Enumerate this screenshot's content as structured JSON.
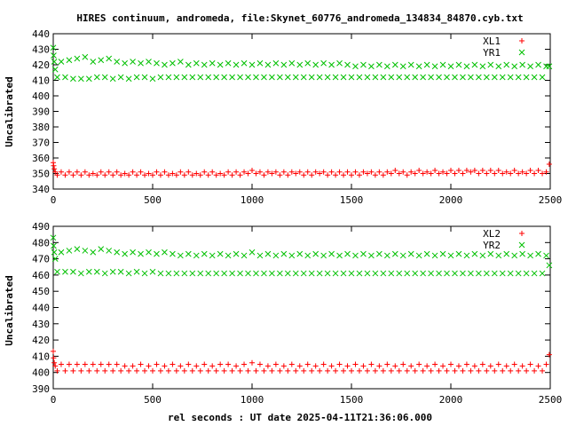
{
  "figure": {
    "title": "HIRES continuum, andromeda, file:Skynet_60776_andromeda_134834_84870.cyb.txt",
    "xlabel": "rel seconds : UT date 2025-04-11T21:36:06.000"
  },
  "chart_data": [
    {
      "type": "scatter",
      "ylabel": "Uncalibrated",
      "xlim": [
        0,
        2500
      ],
      "ylim": [
        340,
        440
      ],
      "xticks": [
        0,
        500,
        1000,
        1500,
        2000,
        2500
      ],
      "yticks": [
        340,
        350,
        360,
        370,
        380,
        390,
        400,
        410,
        420,
        430,
        440
      ],
      "grid": false,
      "legend_position": "top-right",
      "series": [
        {
          "name": "XL1",
          "marker": "plus",
          "color": "#ff0000",
          "x": [
            0,
            2,
            5,
            10,
            20,
            40,
            60,
            80,
            100,
            120,
            140,
            160,
            180,
            200,
            220,
            240,
            260,
            280,
            300,
            320,
            340,
            360,
            380,
            400,
            420,
            440,
            460,
            480,
            500,
            520,
            540,
            560,
            580,
            600,
            620,
            640,
            660,
            680,
            700,
            720,
            740,
            760,
            780,
            800,
            820,
            840,
            860,
            880,
            900,
            920,
            940,
            960,
            980,
            1000,
            1020,
            1040,
            1060,
            1080,
            1100,
            1120,
            1140,
            1160,
            1180,
            1200,
            1220,
            1240,
            1260,
            1280,
            1300,
            1320,
            1340,
            1360,
            1380,
            1400,
            1420,
            1440,
            1460,
            1480,
            1500,
            1520,
            1540,
            1560,
            1580,
            1600,
            1620,
            1640,
            1660,
            1680,
            1700,
            1720,
            1740,
            1760,
            1780,
            1800,
            1820,
            1840,
            1860,
            1880,
            1900,
            1920,
            1940,
            1960,
            1980,
            2000,
            2020,
            2040,
            2060,
            2080,
            2100,
            2120,
            2140,
            2160,
            2180,
            2200,
            2220,
            2240,
            2260,
            2280,
            2300,
            2320,
            2340,
            2360,
            2380,
            2400,
            2420,
            2440,
            2460,
            2480,
            2495
          ],
          "y": [
            357,
            355,
            353,
            351,
            349,
            351,
            349,
            351,
            349,
            351,
            349,
            351,
            349,
            350,
            349,
            351,
            349,
            351,
            349,
            351,
            349,
            350,
            349,
            351,
            349,
            351,
            349,
            350,
            349,
            351,
            349,
            351,
            349,
            350,
            349,
            351,
            349,
            351,
            349,
            350,
            349,
            351,
            349,
            351,
            349,
            350,
            349,
            351,
            349,
            351,
            349,
            351,
            350,
            352,
            350,
            351,
            349,
            351,
            350,
            351,
            349,
            351,
            349,
            351,
            350,
            351,
            349,
            351,
            349,
            351,
            350,
            351,
            349,
            351,
            349,
            351,
            349,
            351,
            349,
            351,
            349,
            351,
            350,
            351,
            349,
            351,
            349,
            351,
            350,
            352,
            350,
            351,
            349,
            351,
            350,
            352,
            350,
            351,
            350,
            352,
            350,
            351,
            350,
            352,
            350,
            352,
            350,
            352,
            351,
            352,
            350,
            352,
            350,
            352,
            350,
            352,
            350,
            351,
            350,
            352,
            350,
            351,
            350,
            352,
            350,
            352,
            350,
            351,
            356
          ]
        },
        {
          "name": "YR1",
          "marker": "cross",
          "color": "#00c000",
          "x": [
            0,
            2,
            5,
            10,
            20,
            40,
            60,
            80,
            100,
            120,
            140,
            160,
            180,
            200,
            220,
            240,
            260,
            280,
            300,
            320,
            340,
            360,
            380,
            400,
            420,
            440,
            460,
            480,
            500,
            520,
            540,
            560,
            580,
            600,
            620,
            640,
            660,
            680,
            700,
            720,
            740,
            760,
            780,
            800,
            820,
            840,
            860,
            880,
            900,
            920,
            940,
            960,
            980,
            1000,
            1020,
            1040,
            1060,
            1080,
            1100,
            1120,
            1140,
            1160,
            1180,
            1200,
            1220,
            1240,
            1260,
            1280,
            1300,
            1320,
            1340,
            1360,
            1380,
            1400,
            1420,
            1440,
            1460,
            1480,
            1500,
            1520,
            1540,
            1560,
            1580,
            1600,
            1620,
            1640,
            1660,
            1680,
            1700,
            1720,
            1740,
            1760,
            1780,
            1800,
            1820,
            1840,
            1860,
            1880,
            1900,
            1920,
            1940,
            1960,
            1980,
            2000,
            2020,
            2040,
            2060,
            2080,
            2100,
            2120,
            2140,
            2160,
            2180,
            2200,
            2220,
            2240,
            2260,
            2280,
            2300,
            2320,
            2340,
            2360,
            2380,
            2400,
            2420,
            2440,
            2460,
            2480,
            2495
          ],
          "y": [
            431,
            426,
            422,
            417,
            412,
            422,
            412,
            423,
            411,
            424,
            411,
            425,
            411,
            422,
            412,
            423,
            412,
            424,
            411,
            422,
            412,
            421,
            411,
            422,
            412,
            421,
            412,
            422,
            411,
            421,
            412,
            420,
            412,
            421,
            412,
            422,
            412,
            420,
            412,
            421,
            412,
            420,
            412,
            421,
            412,
            420,
            412,
            421,
            412,
            420,
            412,
            421,
            412,
            420,
            412,
            421,
            412,
            420,
            412,
            421,
            412,
            420,
            412,
            421,
            412,
            420,
            412,
            421,
            412,
            420,
            412,
            421,
            412,
            420,
            412,
            421,
            412,
            420,
            412,
            419,
            412,
            420,
            412,
            419,
            412,
            420,
            412,
            419,
            412,
            420,
            412,
            419,
            412,
            420,
            412,
            419,
            412,
            420,
            412,
            419,
            412,
            420,
            412,
            419,
            412,
            420,
            412,
            419,
            412,
            420,
            412,
            419,
            412,
            420,
            412,
            419,
            412,
            420,
            412,
            419,
            412,
            420,
            412,
            419,
            412,
            420,
            412,
            419,
            419
          ]
        }
      ]
    },
    {
      "type": "scatter",
      "ylabel": "Uncalibrated",
      "xlim": [
        0,
        2500
      ],
      "ylim": [
        390,
        490
      ],
      "xticks": [
        0,
        500,
        1000,
        1500,
        2000,
        2500
      ],
      "yticks": [
        390,
        400,
        410,
        420,
        430,
        440,
        450,
        460,
        470,
        480,
        490
      ],
      "grid": false,
      "legend_position": "top-right",
      "series": [
        {
          "name": "XL2",
          "marker": "plus",
          "color": "#ff0000",
          "x": [
            0,
            2,
            5,
            10,
            20,
            40,
            60,
            80,
            100,
            120,
            140,
            160,
            180,
            200,
            220,
            240,
            260,
            280,
            300,
            320,
            340,
            360,
            380,
            400,
            420,
            440,
            460,
            480,
            500,
            520,
            540,
            560,
            580,
            600,
            620,
            640,
            660,
            680,
            700,
            720,
            740,
            760,
            780,
            800,
            820,
            840,
            860,
            880,
            900,
            920,
            940,
            960,
            980,
            1000,
            1020,
            1040,
            1060,
            1080,
            1100,
            1120,
            1140,
            1160,
            1180,
            1200,
            1220,
            1240,
            1260,
            1280,
            1300,
            1320,
            1340,
            1360,
            1380,
            1400,
            1420,
            1440,
            1460,
            1480,
            1500,
            1520,
            1540,
            1560,
            1580,
            1600,
            1620,
            1640,
            1660,
            1680,
            1700,
            1720,
            1740,
            1760,
            1780,
            1800,
            1820,
            1840,
            1860,
            1880,
            1900,
            1920,
            1940,
            1960,
            1980,
            2000,
            2020,
            2040,
            2060,
            2080,
            2100,
            2120,
            2140,
            2160,
            2180,
            2200,
            2220,
            2240,
            2260,
            2280,
            2300,
            2320,
            2340,
            2360,
            2380,
            2400,
            2420,
            2440,
            2460,
            2480,
            2495
          ],
          "y": [
            413,
            409,
            406,
            404,
            401,
            405,
            401,
            405,
            401,
            405,
            401,
            405,
            401,
            405,
            401,
            405,
            401,
            405,
            401,
            405,
            401,
            404,
            401,
            404,
            401,
            405,
            401,
            404,
            401,
            405,
            401,
            404,
            401,
            405,
            401,
            404,
            401,
            405,
            401,
            404,
            401,
            405,
            401,
            404,
            401,
            405,
            401,
            405,
            401,
            404,
            401,
            405,
            401,
            406,
            401,
            405,
            401,
            404,
            401,
            405,
            401,
            404,
            401,
            405,
            401,
            404,
            401,
            405,
            401,
            404,
            401,
            405,
            401,
            404,
            401,
            405,
            401,
            404,
            401,
            405,
            401,
            404,
            401,
            405,
            401,
            404,
            401,
            405,
            401,
            404,
            401,
            405,
            401,
            404,
            401,
            405,
            401,
            404,
            401,
            405,
            401,
            404,
            401,
            405,
            401,
            404,
            401,
            405,
            401,
            404,
            401,
            405,
            401,
            404,
            401,
            405,
            401,
            404,
            401,
            405,
            401,
            404,
            401,
            405,
            401,
            404,
            401,
            405,
            411
          ]
        },
        {
          "name": "YR2",
          "marker": "cross",
          "color": "#00c000",
          "x": [
            0,
            2,
            5,
            10,
            20,
            40,
            60,
            80,
            100,
            120,
            140,
            160,
            180,
            200,
            220,
            240,
            260,
            280,
            300,
            320,
            340,
            360,
            380,
            400,
            420,
            440,
            460,
            480,
            500,
            520,
            540,
            560,
            580,
            600,
            620,
            640,
            660,
            680,
            700,
            720,
            740,
            760,
            780,
            800,
            820,
            840,
            860,
            880,
            900,
            920,
            940,
            960,
            980,
            1000,
            1020,
            1040,
            1060,
            1080,
            1100,
            1120,
            1140,
            1160,
            1180,
            1200,
            1220,
            1240,
            1260,
            1280,
            1300,
            1320,
            1340,
            1360,
            1380,
            1400,
            1420,
            1440,
            1460,
            1480,
            1500,
            1520,
            1540,
            1560,
            1580,
            1600,
            1620,
            1640,
            1660,
            1680,
            1700,
            1720,
            1740,
            1760,
            1780,
            1800,
            1820,
            1840,
            1860,
            1880,
            1900,
            1920,
            1940,
            1960,
            1980,
            2000,
            2020,
            2040,
            2060,
            2080,
            2100,
            2120,
            2140,
            2160,
            2180,
            2200,
            2220,
            2240,
            2260,
            2280,
            2300,
            2320,
            2340,
            2360,
            2380,
            2400,
            2420,
            2440,
            2460,
            2480,
            2495
          ],
          "y": [
            483,
            478,
            474,
            470,
            462,
            474,
            462,
            475,
            462,
            476,
            461,
            475,
            462,
            474,
            462,
            476,
            461,
            475,
            462,
            474,
            462,
            473,
            461,
            474,
            462,
            473,
            461,
            474,
            462,
            473,
            461,
            474,
            461,
            473,
            461,
            472,
            461,
            473,
            461,
            472,
            461,
            473,
            461,
            472,
            461,
            473,
            461,
            472,
            461,
            473,
            461,
            472,
            461,
            474,
            461,
            472,
            461,
            473,
            461,
            472,
            461,
            473,
            461,
            472,
            461,
            473,
            461,
            472,
            461,
            473,
            461,
            472,
            461,
            473,
            461,
            472,
            461,
            473,
            461,
            472,
            461,
            473,
            461,
            472,
            461,
            473,
            461,
            472,
            461,
            473,
            461,
            472,
            461,
            473,
            461,
            472,
            461,
            473,
            461,
            472,
            461,
            473,
            461,
            472,
            461,
            473,
            461,
            472,
            461,
            473,
            461,
            472,
            461,
            473,
            461,
            472,
            461,
            473,
            461,
            472,
            461,
            473,
            461,
            472,
            461,
            473,
            461,
            472,
            466
          ]
        }
      ]
    }
  ]
}
